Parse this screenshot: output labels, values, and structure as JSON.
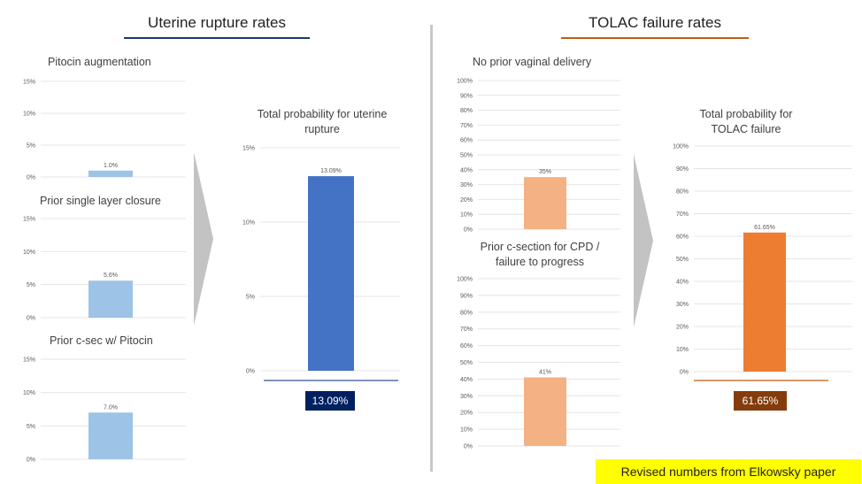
{
  "left_section": {
    "title": "Uterine rupture rates",
    "accent": "#1f3864"
  },
  "right_section": {
    "title": "TOLAC failure rates",
    "accent": "#c55a11"
  },
  "note": "Revised numbers from Elkowsky paper",
  "totals": {
    "uterine": {
      "label": "13.09%",
      "bg": "#002060"
    },
    "tolac": {
      "label": "61.65%",
      "bg": "#843c0c"
    }
  },
  "chart_data": [
    {
      "id": "pitocin",
      "type": "bar",
      "title": "Pitocin augmentation",
      "categories": [
        ""
      ],
      "values": [
        1.0
      ],
      "value_labels": [
        "1.0%"
      ],
      "yticks": [
        "0%",
        "5%",
        "10%",
        "15%"
      ],
      "ylim": [
        0,
        15
      ],
      "color": "#9dc3e6"
    },
    {
      "id": "single-layer",
      "type": "bar",
      "title": "Prior single layer closure",
      "categories": [
        ""
      ],
      "values": [
        5.6
      ],
      "value_labels": [
        "5.6%"
      ],
      "yticks": [
        "0%",
        "5%",
        "10%",
        "15%"
      ],
      "ylim": [
        0,
        15
      ],
      "color": "#9dc3e6"
    },
    {
      "id": "csec-pitocin",
      "type": "bar",
      "title": "Prior c-sec w/ Pitocin",
      "categories": [
        ""
      ],
      "values": [
        7.0
      ],
      "value_labels": [
        "7.0%"
      ],
      "yticks": [
        "0%",
        "5%",
        "10%",
        "15%"
      ],
      "ylim": [
        0,
        15
      ],
      "color": "#9dc3e6"
    },
    {
      "id": "total-uterine",
      "type": "bar",
      "title": "Total probability for uterine rupture",
      "categories": [
        ""
      ],
      "values": [
        13.09
      ],
      "value_labels": [
        "13.09%"
      ],
      "yticks": [
        "0%",
        "5%",
        "10%",
        "15%"
      ],
      "ylim": [
        0,
        15
      ],
      "color": "#4472c4"
    },
    {
      "id": "no-prior-vaginal",
      "type": "bar",
      "title": "No prior vaginal delivery",
      "categories": [
        ""
      ],
      "values": [
        35
      ],
      "value_labels": [
        "35%"
      ],
      "yticks": [
        "0%",
        "10%",
        "20%",
        "30%",
        "40%",
        "50%",
        "60%",
        "70%",
        "80%",
        "90%",
        "100%"
      ],
      "ylim": [
        0,
        100
      ],
      "color": "#f4b183"
    },
    {
      "id": "cpd",
      "type": "bar",
      "title": "Prior c-section for CPD / failure to progress",
      "categories": [
        ""
      ],
      "values": [
        41
      ],
      "value_labels": [
        "41%"
      ],
      "yticks": [
        "0%",
        "10%",
        "20%",
        "30%",
        "40%",
        "50%",
        "60%",
        "70%",
        "80%",
        "90%",
        "100%"
      ],
      "ylim": [
        0,
        100
      ],
      "color": "#f4b183"
    },
    {
      "id": "total-tolac",
      "type": "bar",
      "title": "Total probability for TOLAC failure",
      "categories": [
        ""
      ],
      "values": [
        61.65
      ],
      "value_labels": [
        "61.65%"
      ],
      "yticks": [
        "0%",
        "10%",
        "20%",
        "30%",
        "40%",
        "50%",
        "60%",
        "70%",
        "80%",
        "90%",
        "100%"
      ],
      "ylim": [
        0,
        100
      ],
      "color": "#ed7d31"
    }
  ]
}
